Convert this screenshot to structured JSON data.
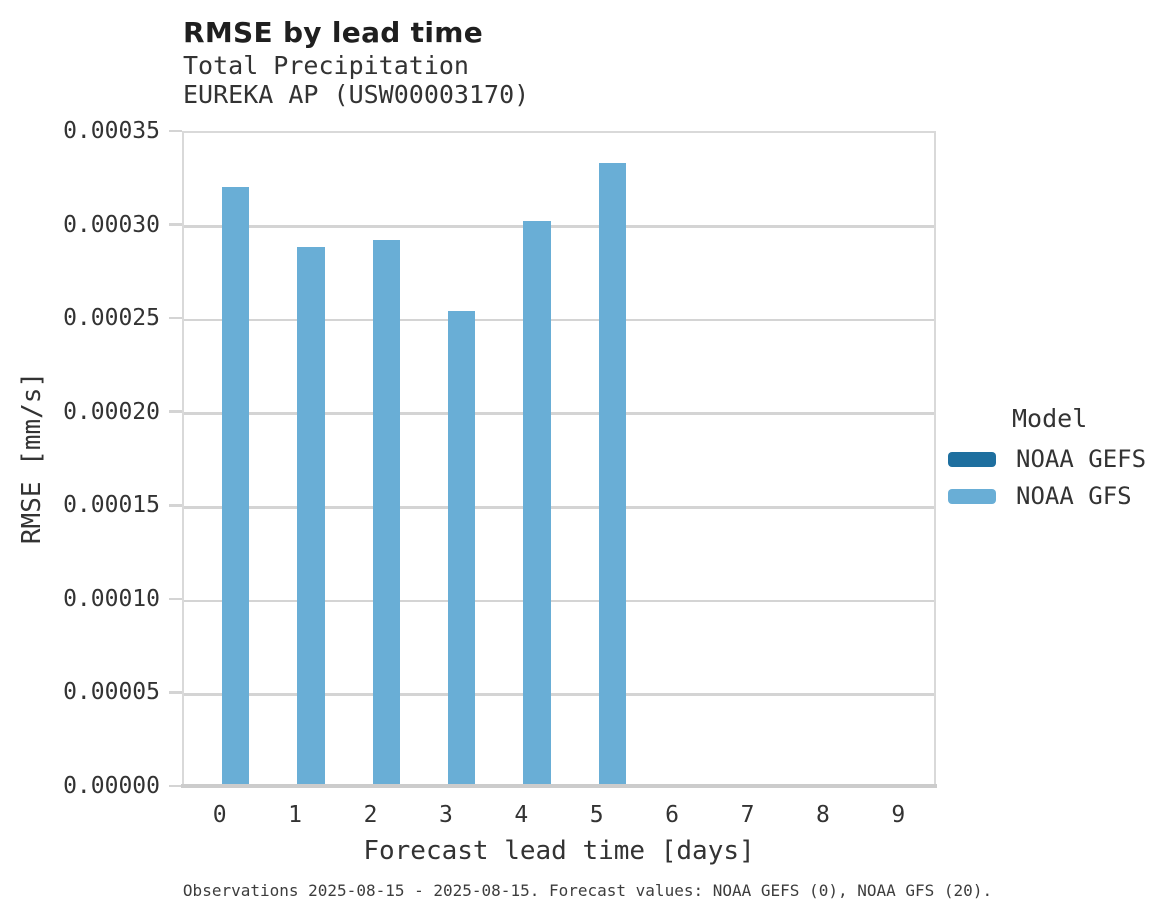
{
  "header": {
    "title": "RMSE by lead time",
    "subtitle1": "Total Precipitation",
    "subtitle2": "EUREKA AP (USW00003170)"
  },
  "chart_data": {
    "type": "bar",
    "title": "RMSE by lead time",
    "subtitle": [
      "Total Precipitation",
      "EUREKA AP (USW00003170)"
    ],
    "xlabel": "Forecast lead time [days]",
    "ylabel": "RMSE [mm/s]",
    "categories": [
      "0",
      "1",
      "2",
      "3",
      "4",
      "5",
      "6",
      "7",
      "8",
      "9"
    ],
    "series": [
      {
        "name": "NOAA GEFS",
        "color": "#1e6f9f",
        "values": [
          null,
          null,
          null,
          null,
          null,
          null,
          null,
          null,
          null,
          null
        ]
      },
      {
        "name": "NOAA GFS",
        "color": "#69aed6",
        "values": [
          0.00032,
          0.000288,
          0.000292,
          0.000254,
          0.000302,
          0.000333,
          null,
          null,
          null,
          null
        ]
      }
    ],
    "ylim": [
      0,
      0.00035
    ],
    "ytick_step": 5e-05,
    "ytick_labels": [
      "0.00000",
      "0.00005",
      "0.00010",
      "0.00015",
      "0.00020",
      "0.00025",
      "0.00030",
      "0.00035"
    ],
    "grid": "horizontal",
    "legend_title": "Model",
    "legend_position": "right"
  },
  "footer": {
    "note": "Observations 2025-08-15 - 2025-08-15. Forecast values: NOAA GEFS (0), NOAA GFS (20)."
  }
}
